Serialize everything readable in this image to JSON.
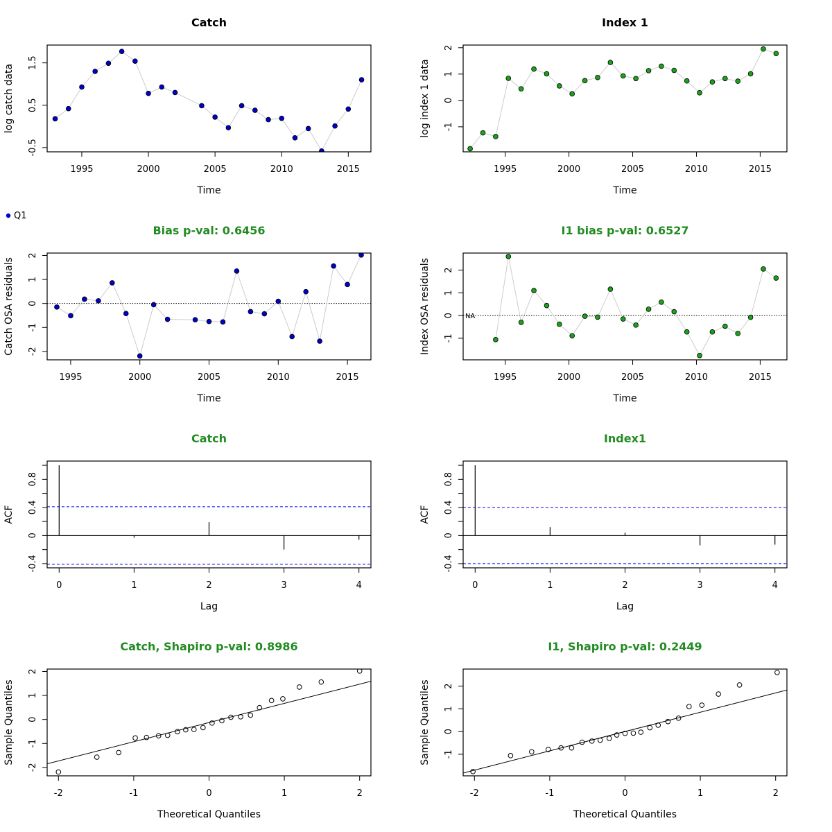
{
  "colors": {
    "catch_point": "#0000cd",
    "index_point": "#1aa31a",
    "bias_title": "#228b22",
    "ci_line": "#0000ff",
    "connector": "#cccccc"
  },
  "legend": {
    "label": "Q1"
  },
  "chart_data": [
    {
      "id": "catch_obs",
      "type": "scatter",
      "title": "Catch",
      "xlabel": "Time",
      "ylabel": "log catch data",
      "xlim": [
        1992.4,
        2016.7
      ],
      "ylim": [
        -0.6,
        1.92
      ],
      "xticks": [
        1995,
        2000,
        2005,
        2010,
        2015
      ],
      "yticks": [
        -0.5,
        0.5,
        1.5
      ],
      "connect": true,
      "point_color": "#0000cd",
      "x": [
        1993,
        1994,
        1995,
        1996,
        1997,
        1998,
        1999,
        2000,
        2001,
        2002,
        2004,
        2005,
        2006,
        2007,
        2008,
        2009,
        2010,
        2011,
        2012,
        2013,
        2014,
        2015,
        2016
      ],
      "y": [
        0.18,
        0.42,
        0.93,
        1.3,
        1.49,
        1.77,
        1.54,
        0.78,
        0.93,
        0.8,
        0.49,
        0.22,
        -0.03,
        0.49,
        0.38,
        0.16,
        0.19,
        -0.27,
        -0.05,
        -0.58,
        0.01,
        0.41,
        1.1
      ]
    },
    {
      "id": "index_obs",
      "type": "scatter",
      "title": "Index 1",
      "xlabel": "Time",
      "ylabel": "log index 1 data",
      "xlim": [
        1991.7,
        2017.1
      ],
      "ylim": [
        -1.95,
        2.1
      ],
      "xticks": [
        1995,
        2000,
        2005,
        2010,
        2015
      ],
      "yticks": [
        -1,
        0,
        1,
        2
      ],
      "connect": true,
      "point_color": "#1aa31a",
      "x": [
        1992.25,
        1993.25,
        1994.25,
        1995.25,
        1996.25,
        1997.25,
        1998.25,
        1999.25,
        2000.25,
        2001.25,
        2002.25,
        2003.25,
        2004.25,
        2005.25,
        2006.25,
        2007.25,
        2008.25,
        2009.25,
        2010.25,
        2011.25,
        2012.25,
        2013.25,
        2014.25,
        2015.25,
        2016.25
      ],
      "y": [
        -1.83,
        -1.23,
        -1.37,
        0.84,
        0.44,
        1.19,
        1.01,
        0.55,
        0.25,
        0.75,
        0.87,
        1.44,
        0.93,
        0.83,
        1.13,
        1.3,
        1.14,
        0.74,
        0.29,
        0.7,
        0.83,
        0.73,
        1.01,
        1.95,
        1.78
      ]
    },
    {
      "id": "catch_resid",
      "type": "scatter",
      "title": "Bias p-val: 0.6456",
      "xlabel": "Time",
      "ylabel": "Catch OSA residuals",
      "xlim": [
        1993.3,
        2016.7
      ],
      "ylim": [
        -2.35,
        2.1
      ],
      "xticks": [
        1995,
        2000,
        2005,
        2010,
        2015
      ],
      "yticks": [
        -2,
        -1,
        0,
        1,
        2
      ],
      "connect": true,
      "zero_line": true,
      "title_color": "#228b22",
      "point_color": "#0000cd",
      "x": [
        1994,
        1995,
        1996,
        1997,
        1998,
        1999,
        2000,
        2001,
        2002,
        2004,
        2005,
        2006,
        2007,
        2008,
        2009,
        2010,
        2011,
        2012,
        2013,
        2014,
        2015,
        2016
      ],
      "y": [
        -0.15,
        -0.51,
        0.18,
        0.11,
        0.86,
        -0.42,
        -2.19,
        -0.05,
        -0.66,
        -0.68,
        -0.75,
        -0.77,
        1.35,
        -0.34,
        -0.43,
        0.09,
        -1.38,
        0.49,
        -1.57,
        1.56,
        0.79,
        2.02
      ]
    },
    {
      "id": "index_resid",
      "type": "scatter",
      "title": "I1 bias p-val: 0.6527",
      "xlabel": "Time",
      "ylabel": "Index OSA residuals",
      "xlim": [
        1991.7,
        2017.1
      ],
      "ylim": [
        -1.95,
        2.75
      ],
      "xticks": [
        1995,
        2000,
        2005,
        2010,
        2015
      ],
      "yticks": [
        -1,
        0,
        1,
        2
      ],
      "connect": true,
      "zero_line": true,
      "na_label": "NA",
      "na_x": 1992.25,
      "title_color": "#228b22",
      "point_color": "#1aa31a",
      "x": [
        1994.25,
        1995.25,
        1996.25,
        1997.25,
        1998.25,
        1999.25,
        2000.25,
        2001.25,
        2002.25,
        2003.25,
        2004.25,
        2005.25,
        2006.25,
        2007.25,
        2008.25,
        2009.25,
        2010.25,
        2011.25,
        2012.25,
        2013.25,
        2014.25,
        2015.25,
        2016.25
      ],
      "y": [
        -1.06,
        2.6,
        -0.3,
        1.1,
        0.44,
        -0.38,
        -0.89,
        -0.03,
        -0.07,
        1.16,
        -0.15,
        -0.42,
        0.28,
        0.59,
        0.17,
        -0.72,
        -1.76,
        -0.72,
        -0.47,
        -0.79,
        -0.08,
        2.05,
        1.65
      ]
    },
    {
      "id": "catch_acf",
      "type": "bar",
      "title": "Catch",
      "xlabel": "Lag",
      "ylabel": "ACF",
      "xlim": [
        -0.16,
        4.16
      ],
      "ylim": [
        -0.46,
        1.06
      ],
      "xticks": [
        0,
        1,
        2,
        3,
        4
      ],
      "yticks": [
        -0.4,
        0.0,
        0.4,
        0.8
      ],
      "yticks_minor": [
        -0.2,
        0.2,
        0.6,
        1.0
      ],
      "ci": 0.41,
      "title_color": "#228b22",
      "x": [
        0,
        1,
        2,
        3,
        4
      ],
      "values": [
        1.0,
        -0.03,
        0.19,
        -0.2,
        -0.06
      ]
    },
    {
      "id": "index_acf",
      "type": "bar",
      "title": "Index1",
      "xlabel": "Lag",
      "ylabel": "ACF",
      "xlim": [
        -0.16,
        4.16
      ],
      "ylim": [
        -0.46,
        1.06
      ],
      "xticks": [
        0,
        1,
        2,
        3,
        4
      ],
      "yticks": [
        -0.4,
        0.0,
        0.4,
        0.8
      ],
      "yticks_minor": [
        -0.2,
        0.2,
        0.6,
        1.0
      ],
      "ci": 0.4,
      "title_color": "#228b22",
      "x": [
        0,
        1,
        2,
        3,
        4
      ],
      "values": [
        1.0,
        0.12,
        0.04,
        -0.14,
        -0.13
      ]
    },
    {
      "id": "catch_qq",
      "type": "scatter",
      "title": "Catch, Shapiro p-val: 0.8986",
      "xlabel": "Theoretical Quantiles",
      "ylabel": "Sample Quantiles",
      "xlim": [
        -2.15,
        2.15
      ],
      "ylim": [
        -2.35,
        2.1
      ],
      "xticks": [
        -2,
        -1,
        0,
        1,
        2
      ],
      "yticks": [
        -2,
        -1,
        0,
        1,
        2
      ],
      "open_points": true,
      "title_color": "#228b22",
      "qq_line": {
        "intercept": -0.13,
        "slope": 0.8
      },
      "x": [
        -2.0,
        -1.49,
        -1.2,
        -0.98,
        -0.83,
        -0.67,
        -0.55,
        -0.42,
        -0.31,
        -0.2,
        -0.08,
        0.04,
        0.17,
        0.29,
        0.42,
        0.55,
        0.67,
        0.83,
        0.98,
        1.2,
        1.49,
        2.0
      ],
      "y": [
        -2.19,
        -1.57,
        -1.38,
        -0.77,
        -0.75,
        -0.68,
        -0.66,
        -0.51,
        -0.43,
        -0.42,
        -0.34,
        -0.15,
        -0.05,
        0.09,
        0.11,
        0.18,
        0.49,
        0.79,
        0.86,
        1.35,
        1.56,
        2.02
      ]
    },
    {
      "id": "index_qq",
      "type": "scatter",
      "title": "I1, Shapiro p-val: 0.2449",
      "xlabel": "Theoretical Quantiles",
      "ylabel": "Sample Quantiles",
      "xlim": [
        -2.15,
        2.15
      ],
      "ylim": [
        -1.95,
        2.75
      ],
      "xticks": [
        -2,
        -1,
        0,
        1,
        2
      ],
      "yticks": [
        -1,
        0,
        1,
        2
      ],
      "open_points": true,
      "title_color": "#228b22",
      "qq_line": {
        "intercept": 0.0,
        "slope": 0.85
      },
      "x": [
        -2.02,
        -1.52,
        -1.24,
        -1.02,
        -0.85,
        -0.71,
        -0.57,
        -0.44,
        -0.33,
        -0.21,
        -0.11,
        0.0,
        0.11,
        0.21,
        0.33,
        0.44,
        0.57,
        0.71,
        0.85,
        1.02,
        1.24,
        1.52,
        2.02
      ],
      "y": [
        -1.76,
        -1.06,
        -0.89,
        -0.79,
        -0.72,
        -0.72,
        -0.47,
        -0.42,
        -0.38,
        -0.3,
        -0.15,
        -0.08,
        -0.07,
        -0.03,
        0.17,
        0.28,
        0.44,
        0.59,
        1.1,
        1.16,
        1.65,
        2.05,
        2.6
      ]
    }
  ]
}
